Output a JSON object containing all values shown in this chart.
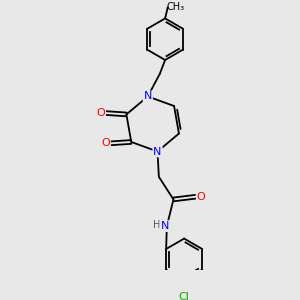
{
  "background_color": "#e8e8e8",
  "atoms": {
    "colors": {
      "C": "#000000",
      "N": "#0000ff",
      "O": "#ff0000",
      "Cl": "#00aa00",
      "H": "#555555"
    }
  },
  "font_size_label": 7.5,
  "bond_color": "#000000"
}
